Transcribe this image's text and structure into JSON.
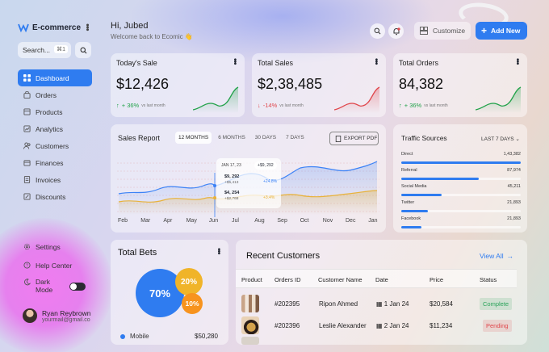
{
  "sidebar": {
    "brand": "E-commerce",
    "search_placeholder": "Search...",
    "search_kbd": "⌘1",
    "nav": [
      {
        "label": "Dashboard",
        "icon": "grid-icon",
        "active": true
      },
      {
        "label": "Orders",
        "icon": "bag-icon"
      },
      {
        "label": "Products",
        "icon": "box-icon"
      },
      {
        "label": "Analytics",
        "icon": "chart-icon"
      },
      {
        "label": "Customers",
        "icon": "users-icon"
      },
      {
        "label": "Finances",
        "icon": "wallet-icon"
      },
      {
        "label": "Invoices",
        "icon": "invoice-icon"
      },
      {
        "label": "Discounts",
        "icon": "tag-icon"
      }
    ],
    "bottom": [
      {
        "label": "Settings",
        "icon": "gear-icon"
      },
      {
        "label": "Help Center",
        "icon": "help-icon"
      }
    ],
    "dark_mode_label_1": "Dark",
    "dark_mode_label_2": "Mode",
    "user": {
      "name": "Ryan Reybrown",
      "email": "yourmail@gmail.co"
    }
  },
  "header": {
    "greeting": "Hi, Jubed",
    "welcome": "Welcome back to Ecomic 👋",
    "customize_label": "Customize",
    "add_new_label": "Add New"
  },
  "stats": [
    {
      "title": "Today's Sale",
      "value": "$12,426",
      "change": "+ 36%",
      "direction": "up",
      "sub": "vs last month",
      "color": "#22a24a"
    },
    {
      "title": "Total Sales",
      "value": "$2,38,485",
      "change": "-14%",
      "direction": "down",
      "sub": "vs last month",
      "color": "#e0474c"
    },
    {
      "title": "Total Orders",
      "value": "84,382",
      "change": "+ 36%",
      "direction": "up",
      "sub": "vs last month",
      "color": "#22a24a"
    }
  ],
  "sales_report": {
    "title": "Sales Report",
    "tabs": [
      "12 MONTHS",
      "6 MONTHS",
      "30 DAYS",
      "7 DAYS"
    ],
    "export_label": "EXPORT PDF",
    "months": [
      "Feb",
      "Mar",
      "Apr",
      "May",
      "Jun",
      "Jul",
      "Aug",
      "Sep",
      "Oct",
      "Nov",
      "Dec",
      "Jan"
    ],
    "tooltip": {
      "date": "JAN 17, 23",
      "chip": "+$9, 292",
      "v1": "$9, 292",
      "s1": "+$5,413",
      "p1": "+24.8%",
      "v2": "$4, 254",
      "s2": "+$2,768",
      "p2": "+3.4%"
    }
  },
  "traffic": {
    "title": "Traffic Sources",
    "range": "LAST 7 DAYS",
    "sources": [
      {
        "name": "Direct",
        "value": "1,43,382",
        "fill": 1.0
      },
      {
        "name": "Referral",
        "value": "87,974",
        "fill": 0.65
      },
      {
        "name": "Social Media",
        "value": "45,211",
        "fill": 0.34
      },
      {
        "name": "Twitter",
        "value": "21,893",
        "fill": 0.22
      },
      {
        "name": "Facebook",
        "value": "21,893",
        "fill": 0.17
      }
    ]
  },
  "bets": {
    "title": "Total Bets",
    "slices": [
      {
        "label": "70%",
        "color": "#2f7cf0"
      },
      {
        "label": "20%",
        "color": "#f0b429"
      },
      {
        "label": "10%",
        "color": "#f7931e"
      }
    ],
    "legend": [
      {
        "name": "Mobile",
        "value": "$50,280"
      }
    ]
  },
  "customers": {
    "title": "Recent Customers",
    "view_all": "View All",
    "columns": [
      "Product",
      "Orders ID",
      "Customer Name",
      "Date",
      "Price",
      "Status"
    ],
    "rows": [
      {
        "order_id": "#202395",
        "name": "Ripon Ahmed",
        "date": "1 Jan 24",
        "price": "$20,584",
        "status": "Complete",
        "status_color": "#2aa35a"
      },
      {
        "order_id": "#202396",
        "name": "Leslie Alexander",
        "date": "2 Jan 24",
        "price": "$11,234",
        "status": "Pending",
        "status_color": "#e0474c"
      }
    ]
  },
  "colors": {
    "accent": "#2f7cf0",
    "line_blue": "#3b82f6",
    "line_yellow": "#e8b23a"
  }
}
